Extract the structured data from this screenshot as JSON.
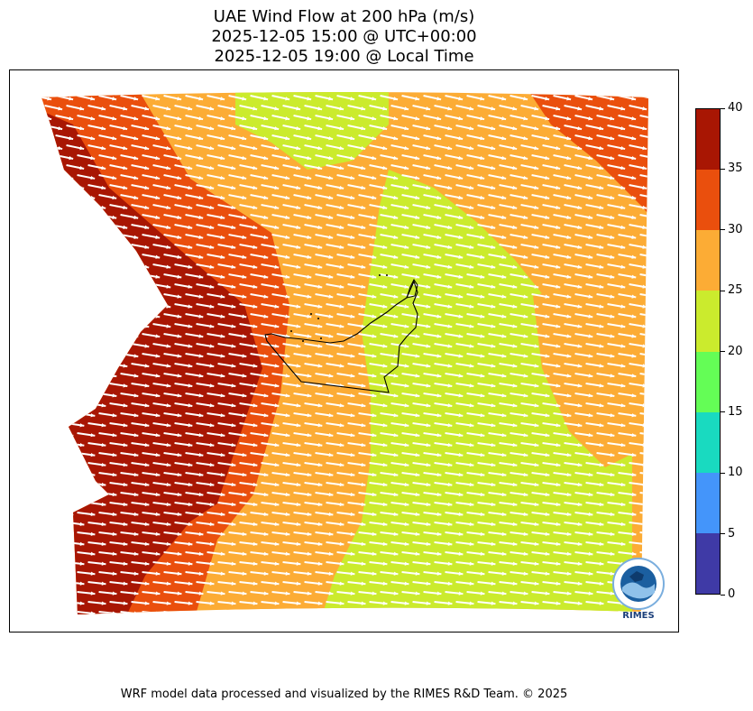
{
  "title": {
    "line1": "UAE Wind Flow at 200 hPa (m/s)",
    "line2": "2025-12-05 15:00 @ UTC+00:00",
    "line3": "2025-12-05 19:00 @ Local Time"
  },
  "colorbar": {
    "ticks": [
      "0",
      "5",
      "10",
      "15",
      "20",
      "25",
      "30",
      "35",
      "40"
    ],
    "colors": [
      "#3f3aa6",
      "#4495fa",
      "#19dac0",
      "#64fd56",
      "#cbeb2d",
      "#fcac35",
      "#ea4f0d",
      "#a81603"
    ]
  },
  "map": {
    "fill_colors": {
      "band_20_25": "#cbeb2d",
      "band_25_30": "#fcac35",
      "band_30_35": "#ea4f0d",
      "band_35_40": "#a81603",
      "vectors": "#ffffff",
      "coastline": "#000000"
    },
    "wind_direction": "west-northwest to east-southeast"
  },
  "logo": {
    "text": "RIMES",
    "icon": "rimes-globe-logo"
  },
  "footer": "WRF model data processed and visualized by the RIMES R&D Team. © 2025"
}
